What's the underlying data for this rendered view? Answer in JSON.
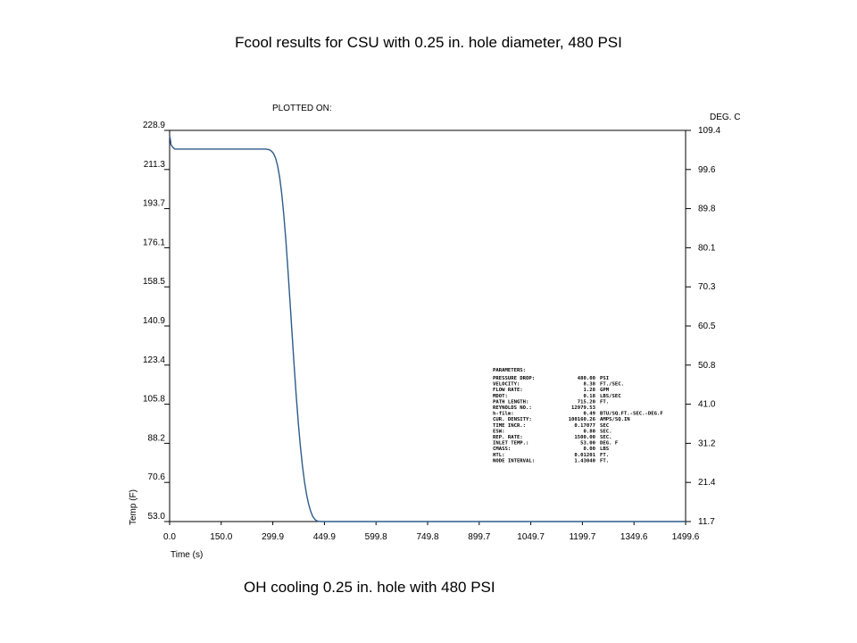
{
  "slide": {
    "title": "Fcool results for CSU with 0.25 in. hole diameter, 480 PSI",
    "caption": "OH cooling 0.25 in. hole with 480 PSI"
  },
  "chart_data": {
    "type": "line",
    "header_label": "PLOTTED ON:",
    "xlabel": "Time (s)",
    "ylabel": "Temp (F)",
    "y2label": "DEG. C",
    "xlim": [
      0.0,
      1499.6
    ],
    "ylim": [
      53.0,
      228.9
    ],
    "y2lim": [
      11.7,
      109.4
    ],
    "x_ticks": [
      "0.0",
      "150.0",
      "299.9",
      "449.9",
      "599.8",
      "749.8",
      "899.7",
      "1049.7",
      "1199.7",
      "1349.6",
      "1499.6"
    ],
    "y_ticks": [
      "53.0",
      "70.6",
      "88.2",
      "105.8",
      "123.4",
      "140.9",
      "158.5",
      "176.1",
      "193.7",
      "211.3",
      "228.9"
    ],
    "y2_ticks": [
      "11.7",
      "21.4",
      "31.2",
      "41.0",
      "50.8",
      "60.5",
      "70.3",
      "80.1",
      "89.8",
      "99.6",
      "109.4"
    ],
    "grid": false,
    "line_color": "#2e5a8a",
    "series": [
      {
        "x": [
          0,
          2,
          4,
          8,
          15,
          30,
          100,
          200,
          280,
          290,
          296,
          302,
          308,
          314,
          320,
          326,
          332,
          338,
          344,
          350,
          356,
          362,
          368,
          374,
          380,
          386,
          392,
          398,
          404,
          410,
          416,
          422,
          428,
          434,
          440,
          446,
          452,
          458,
          464,
          470,
          476,
          482,
          488,
          494,
          500,
          600,
          750,
          900,
          1050,
          1200,
          1350,
          1499.6
        ],
        "y": [
          226.5,
          225.0,
          222.5,
          221.5,
          220.5,
          220.5,
          220.5,
          220.5,
          220.5,
          220.2,
          219.6,
          218.5,
          216.4,
          212.9,
          207.6,
          200.2,
          190.6,
          179.1,
          165.9,
          151.7,
          137.1,
          122.9,
          109.5,
          97.4,
          86.9,
          78.1,
          70.9,
          65.2,
          60.8,
          57.6,
          55.3,
          54.0,
          53.3,
          53.1,
          53.0,
          53.0,
          53.0,
          53.0,
          53.0,
          53.0,
          53.0,
          53.0,
          53.0,
          53.0,
          53.0,
          53.0,
          53.0,
          53.0,
          53.0,
          53.0,
          53.0,
          53.0
        ]
      }
    ],
    "parameters": {
      "heading": "PARAMETERS:",
      "rows": [
        {
          "label": "PRESSURE DROP:",
          "value": "480.00",
          "unit": "PSI"
        },
        {
          "label": "VELOCITY:",
          "value": "8.38",
          "unit": "FT./SEC."
        },
        {
          "label": "FLOW RATE:",
          "value": "1.28",
          "unit": "GPM"
        },
        {
          "label": "MDOT:",
          "value": "0.18",
          "unit": "LBS/SEC"
        },
        {
          "label": "PATH LENGTH:",
          "value": "715.20",
          "unit": "FT."
        },
        {
          "label": "REYNOLDS NO.:",
          "value": "12979.53",
          "unit": ""
        },
        {
          "label": "h-film:",
          "value": "0.49",
          "unit": "BTU/SQ.FT.-SEC.-DEG.F"
        },
        {
          "label": "CUR. DENSITY:",
          "value": "100160.26",
          "unit": "AMPS/SQ.IN"
        },
        {
          "label": "TIME INCR.:",
          "value": "0.17077",
          "unit": "SEC"
        },
        {
          "label": "ESW:",
          "value": "0.80",
          "unit": "SEC."
        },
        {
          "label": "REP. RATE:",
          "value": "1500.00",
          "unit": "SEC."
        },
        {
          "label": "INLET TEMP.:",
          "value": "53.00",
          "unit": "DEG. F"
        },
        {
          "label": "CMASS:",
          "value": "0.00",
          "unit": "LBS"
        },
        {
          "label": "HTL:",
          "value": "0.01201",
          "unit": "FT."
        },
        {
          "label": "NODE INTERVAL:",
          "value": "1.43040",
          "unit": "FT."
        }
      ]
    }
  }
}
